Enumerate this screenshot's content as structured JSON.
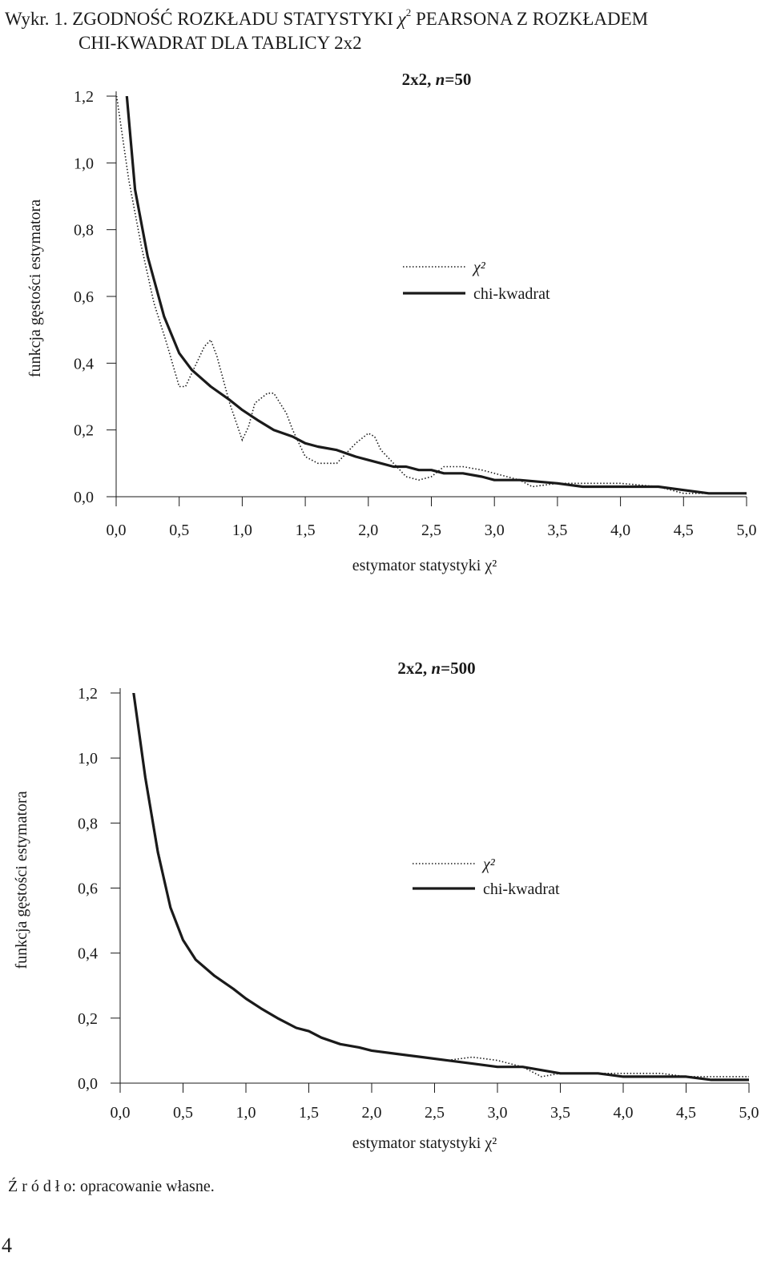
{
  "figure": {
    "title_prefix": "Wykr. 1. ZGODNOŚĆ ROZKŁADU STATYSTYKI ",
    "title_chi": "χ",
    "title_sup": "2",
    "title_rest": " PEARSONA Z ROZKŁADEM",
    "title_line2": "CHI-KWADRAT DLA TABLICY 2x2"
  },
  "source_text": "Ź r ó d ł o: opracowanie własne.",
  "page_number": "4",
  "colors": {
    "ink": "#1a1a1a",
    "background": "#ffffff"
  },
  "chart_data": [
    {
      "type": "line",
      "title": "2x2, n=50",
      "title_parts": [
        "2x2, ",
        "n",
        "=50"
      ],
      "xlabel": "estymator statystyki χ²",
      "ylabel": "funkcja gęstości estymatora",
      "xlim": [
        0,
        5
      ],
      "ylim": [
        0,
        1.2
      ],
      "x_ticks": [
        "0,0",
        "0,5",
        "1,0",
        "1,5",
        "2,0",
        "2,5",
        "3,0",
        "3,5",
        "4,0",
        "4,5",
        "5,0"
      ],
      "y_ticks": [
        "0,0",
        "0,2",
        "0,4",
        "0,6",
        "0,8",
        "1,0",
        "1,2"
      ],
      "grid": false,
      "legend_position": "center-right",
      "series": [
        {
          "name": "χ²",
          "style": "dotted",
          "x": [
            0.0,
            0.1,
            0.2,
            0.3,
            0.4,
            0.5,
            0.55,
            0.6,
            0.7,
            0.75,
            0.8,
            0.9,
            1.0,
            1.05,
            1.1,
            1.2,
            1.25,
            1.3,
            1.35,
            1.4,
            1.5,
            1.6,
            1.75,
            1.9,
            2.0,
            2.05,
            2.1,
            2.2,
            2.3,
            2.4,
            2.5,
            2.6,
            2.75,
            2.9,
            3.0,
            3.2,
            3.3,
            3.5,
            3.7,
            4.0,
            4.3,
            4.5,
            4.7,
            5.0
          ],
          "y": [
            1.21,
            0.95,
            0.75,
            0.58,
            0.46,
            0.33,
            0.33,
            0.37,
            0.45,
            0.47,
            0.42,
            0.28,
            0.17,
            0.21,
            0.28,
            0.31,
            0.31,
            0.28,
            0.25,
            0.2,
            0.12,
            0.1,
            0.1,
            0.16,
            0.19,
            0.18,
            0.14,
            0.1,
            0.06,
            0.05,
            0.06,
            0.09,
            0.09,
            0.08,
            0.07,
            0.05,
            0.03,
            0.04,
            0.04,
            0.04,
            0.03,
            0.01,
            0.01,
            0.01
          ]
        },
        {
          "name": "chi-kwadrat",
          "style": "solid",
          "x": [
            0.08,
            0.15,
            0.25,
            0.38,
            0.5,
            0.6,
            0.75,
            0.9,
            1.0,
            1.12,
            1.25,
            1.4,
            1.5,
            1.6,
            1.75,
            1.9,
            2.0,
            2.1,
            2.2,
            2.3,
            2.4,
            2.5,
            2.6,
            2.75,
            2.9,
            3.0,
            3.2,
            3.5,
            3.7,
            4.0,
            4.3,
            4.5,
            4.7,
            5.0
          ],
          "y": [
            1.22,
            0.92,
            0.72,
            0.54,
            0.43,
            0.38,
            0.33,
            0.29,
            0.26,
            0.23,
            0.2,
            0.18,
            0.16,
            0.15,
            0.14,
            0.12,
            0.11,
            0.1,
            0.09,
            0.09,
            0.08,
            0.08,
            0.07,
            0.07,
            0.06,
            0.05,
            0.05,
            0.04,
            0.03,
            0.03,
            0.03,
            0.02,
            0.01,
            0.01
          ]
        }
      ]
    },
    {
      "type": "line",
      "title": "2x2, n=500",
      "title_parts": [
        "2x2, ",
        "n",
        "=500"
      ],
      "xlabel": "estymator statystyki χ²",
      "ylabel": "funkcja gęstości estymatora",
      "xlim": [
        0,
        5
      ],
      "ylim": [
        0,
        1.2
      ],
      "x_ticks": [
        "0,0",
        "0,5",
        "1,0",
        "1,5",
        "2,0",
        "2,5",
        "3,0",
        "3,5",
        "4,0",
        "4,5",
        "5,0"
      ],
      "y_ticks": [
        "0,0",
        "0,2",
        "0,4",
        "0,6",
        "0,8",
        "1,0",
        "1,2"
      ],
      "grid": false,
      "legend_position": "center-right",
      "series": [
        {
          "name": "χ²",
          "style": "dotted",
          "x": [
            0.1,
            0.2,
            0.3,
            0.4,
            0.5,
            0.6,
            0.75,
            0.9,
            1.0,
            1.12,
            1.25,
            1.4,
            1.5,
            1.6,
            1.75,
            1.9,
            2.0,
            2.2,
            2.4,
            2.6,
            2.8,
            3.0,
            3.2,
            3.35,
            3.5,
            3.8,
            4.0,
            4.3,
            4.5,
            5.0
          ],
          "y": [
            1.22,
            0.95,
            0.72,
            0.54,
            0.44,
            0.38,
            0.33,
            0.29,
            0.26,
            0.23,
            0.2,
            0.17,
            0.16,
            0.14,
            0.12,
            0.11,
            0.1,
            0.09,
            0.08,
            0.07,
            0.08,
            0.07,
            0.05,
            0.02,
            0.03,
            0.03,
            0.03,
            0.03,
            0.02,
            0.02
          ]
        },
        {
          "name": "chi-kwadrat",
          "style": "solid",
          "x": [
            0.1,
            0.2,
            0.3,
            0.4,
            0.5,
            0.6,
            0.75,
            0.9,
            1.0,
            1.12,
            1.25,
            1.4,
            1.5,
            1.6,
            1.75,
            1.9,
            2.0,
            2.2,
            2.4,
            2.6,
            2.8,
            3.0,
            3.2,
            3.5,
            3.8,
            4.0,
            4.3,
            4.5,
            4.7,
            5.0
          ],
          "y": [
            1.22,
            0.94,
            0.71,
            0.54,
            0.44,
            0.38,
            0.33,
            0.29,
            0.26,
            0.23,
            0.2,
            0.17,
            0.16,
            0.14,
            0.12,
            0.11,
            0.1,
            0.09,
            0.08,
            0.07,
            0.06,
            0.05,
            0.05,
            0.03,
            0.03,
            0.02,
            0.02,
            0.02,
            0.01,
            0.01
          ]
        }
      ]
    }
  ]
}
